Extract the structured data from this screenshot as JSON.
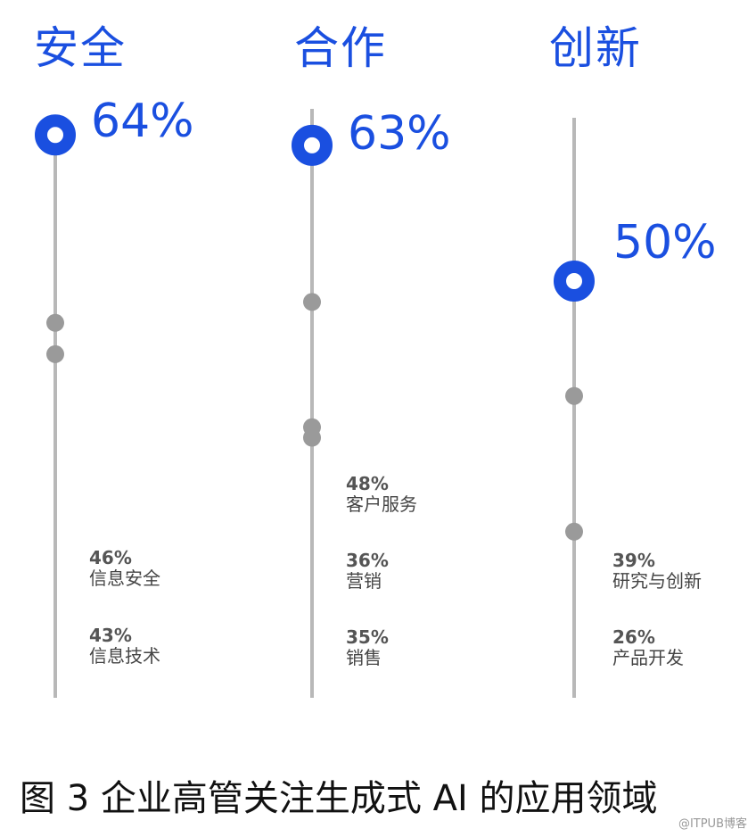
{
  "chart_data": {
    "type": "scatter",
    "colors": {
      "highlight": "#1a4fe0",
      "point": "#9a9a9a",
      "line": "#b8b8b8"
    },
    "columns": [
      {
        "title": "安全",
        "top_value": "64%",
        "top": 64,
        "points": [
          {
            "value": "46%",
            "label": "信息安全",
            "v": 46
          },
          {
            "value": "43%",
            "label": "信息技术",
            "v": 43
          }
        ]
      },
      {
        "title": "合作",
        "top_value": "63%",
        "top": 63,
        "points": [
          {
            "value": "48%",
            "label": "客户服务",
            "v": 48
          },
          {
            "value": "36%",
            "label": "营销",
            "v": 36
          },
          {
            "value": "35%",
            "label": "销售",
            "v": 35
          }
        ]
      },
      {
        "title": "创新",
        "top_value": "50%",
        "top": 50,
        "points": [
          {
            "value": "39%",
            "label": "研究与创新",
            "v": 39
          },
          {
            "value": "26%",
            "label": "产品开发",
            "v": 26
          }
        ]
      }
    ]
  },
  "caption": "图  3  企业高管关注生成式 AI 的应用领域",
  "watermark": "@ITPUB博客"
}
